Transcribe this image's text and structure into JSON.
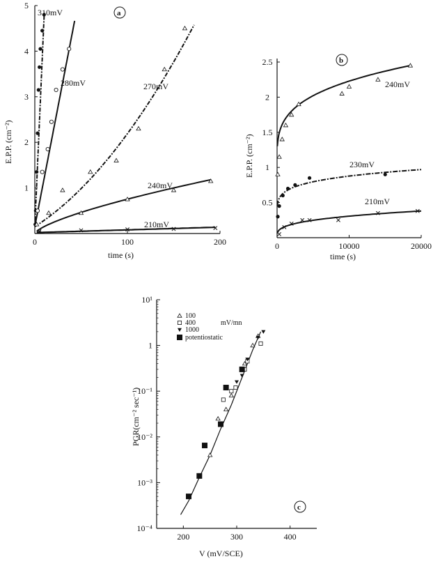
{
  "chart_data": [
    {
      "panel": "a",
      "type": "scatter",
      "xlabel": "time (s)",
      "ylabel": "E.P.P. (cm⁻²)",
      "xlim": [
        0,
        200
      ],
      "ylim": [
        0,
        5
      ],
      "xticks": [
        "0",
        "100",
        "200"
      ],
      "yticks": [
        "1",
        "2",
        "3",
        "4",
        "5"
      ],
      "series": [
        {
          "name": "310mV",
          "marker": "dot",
          "x": [
            0.5,
            1,
            2,
            3,
            4,
            5,
            6,
            8,
            10
          ],
          "y": [
            0.2,
            0.5,
            1.35,
            2.2,
            3.15,
            3.65,
            4.05,
            4.45,
            4.8
          ]
        },
        {
          "name": "280mV",
          "marker": "circle",
          "x": [
            3,
            8,
            14,
            18,
            23,
            30,
            37
          ],
          "y": [
            0.5,
            1.35,
            1.85,
            2.45,
            3.15,
            3.6,
            4.05
          ]
        },
        {
          "name": "270mV",
          "marker": "triangle",
          "x": [
            2,
            15,
            30,
            60,
            88,
            112,
            140,
            162
          ],
          "y": [
            0.2,
            0.45,
            0.95,
            1.35,
            1.6,
            2.3,
            3.6,
            4.5
          ]
        },
        {
          "name": "240mV",
          "marker": "triangle",
          "x": [
            5,
            50,
            100,
            150,
            190
          ],
          "y": [
            0.05,
            0.45,
            0.75,
            0.95,
            1.15
          ]
        },
        {
          "name": "210mV",
          "marker": "cross",
          "x": [
            5,
            50,
            100,
            150,
            195
          ],
          "y": [
            0.05,
            0.07,
            0.09,
            0.1,
            0.12
          ]
        }
      ]
    },
    {
      "panel": "b",
      "type": "scatter",
      "xlabel": "time (s)",
      "ylabel": "E.P.P. (cm⁻²)",
      "xlim": [
        0,
        20000
      ],
      "ylim": [
        0,
        2.5
      ],
      "xticks": [
        "0",
        "10000",
        "20000"
      ],
      "yticks": [
        "0.5",
        "1",
        "1.5",
        "2",
        "2.5"
      ],
      "series": [
        {
          "name": "240mV",
          "marker": "triangle",
          "x": [
            100,
            300,
            700,
            1200,
            2000,
            3000,
            9000,
            10000,
            14000,
            18500
          ],
          "y": [
            0.9,
            1.15,
            1.4,
            1.6,
            1.75,
            1.9,
            2.05,
            2.15,
            2.25,
            2.45
          ]
        },
        {
          "name": "230mV",
          "marker": "dot",
          "x": [
            100,
            300,
            800,
            1500,
            2500,
            4500,
            15000
          ],
          "y": [
            0.3,
            0.45,
            0.6,
            0.7,
            0.75,
            0.85,
            0.9
          ]
        },
        {
          "name": "210mV",
          "marker": "cross",
          "x": [
            300,
            1000,
            2000,
            3500,
            4500,
            8500,
            14000,
            19500
          ],
          "y": [
            0.05,
            0.15,
            0.2,
            0.25,
            0.25,
            0.25,
            0.35,
            0.38
          ]
        }
      ]
    },
    {
      "panel": "c",
      "type": "scatter",
      "xlabel": "V (mV/SCE)",
      "ylabel": "PGR(cm⁻² sec⁻¹)",
      "xlim": [
        150,
        450
      ],
      "ylim_log10": [
        -4,
        1
      ],
      "xticks": [
        "200",
        "300",
        "400"
      ],
      "yticks": [
        "10⁻⁴",
        "10⁻³",
        "10⁻²",
        "10⁻¹",
        "1",
        "10¹"
      ],
      "legend_placement": "top-left",
      "legend_unit": "mV/mn",
      "fit_line": {
        "x": [
          195,
          210,
          230,
          250,
          270,
          290,
          310,
          330,
          345
        ],
        "y": [
          0.0002,
          0.0004,
          0.0013,
          0.004,
          0.015,
          0.05,
          0.2,
          0.8,
          2.0
        ]
      },
      "series": [
        {
          "name": "100",
          "marker": "triangle",
          "x": [
            250,
            265,
            280,
            290,
            315,
            330,
            340
          ],
          "y": [
            0.004,
            0.025,
            0.04,
            0.08,
            0.4,
            1.0,
            1.6
          ]
        },
        {
          "name": "400",
          "marker": "square",
          "x": [
            275,
            290,
            298,
            315,
            320,
            345
          ],
          "y": [
            0.065,
            0.1,
            0.12,
            0.3,
            0.45,
            1.1
          ]
        },
        {
          "name": "1000",
          "marker": "inverted-triangle",
          "x": [
            300,
            310,
            320,
            340,
            350
          ],
          "y": [
            0.16,
            0.22,
            0.5,
            1.5,
            2.0
          ]
        },
        {
          "name": "potentiostatic",
          "marker": "filled-square",
          "x": [
            210,
            230,
            240,
            270,
            280,
            310
          ],
          "y": [
            0.0005,
            0.0014,
            0.0065,
            0.019,
            0.12,
            0.3
          ]
        }
      ]
    }
  ]
}
